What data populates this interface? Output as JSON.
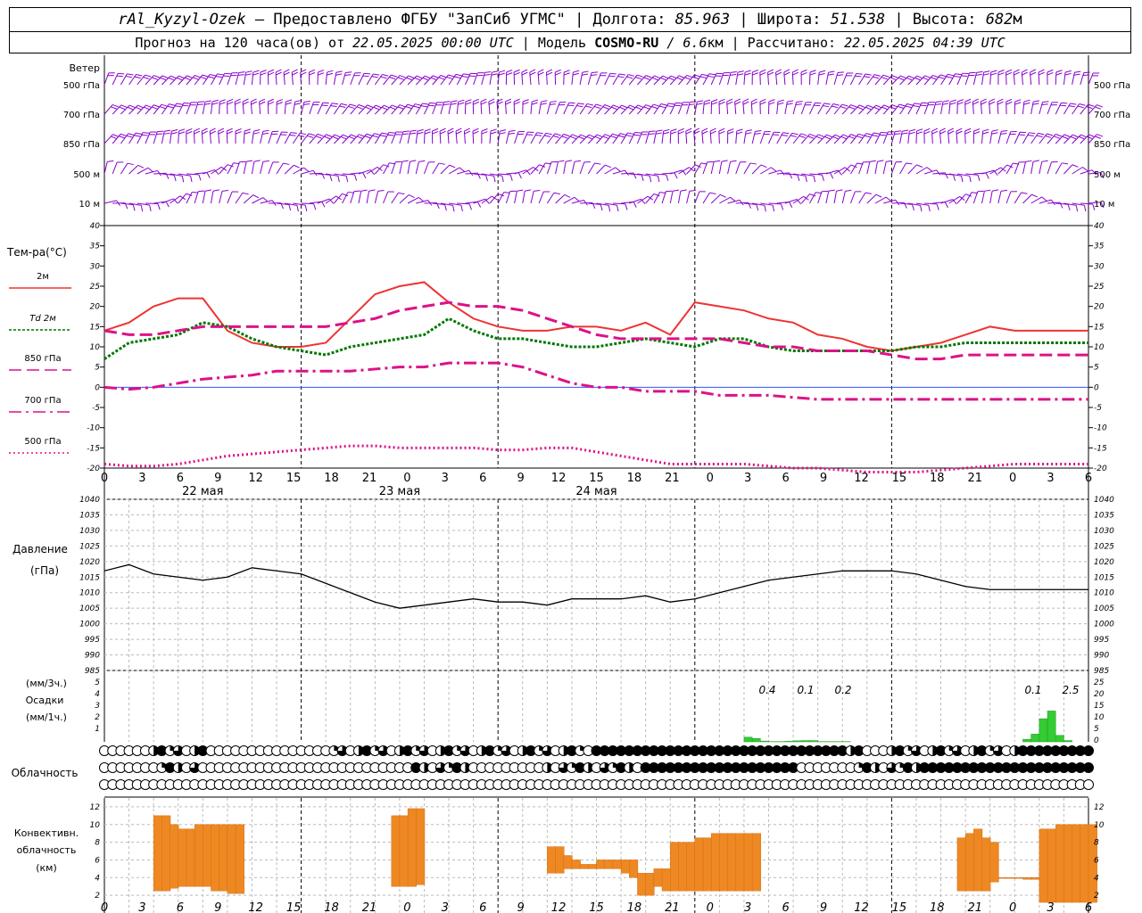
{
  "header": {
    "station": "rAl_Kyzyl-Ozek",
    "provider": " – Предоставлено ФГБУ \"ЗапСиб УГМС\" | Долгота: ",
    "lon": "85.963",
    "lat_label": " | Широта: ",
    "lat": "51.538",
    "alt_label": " | Высота: ",
    "alt": "682",
    "alt_unit": "м",
    "fc_label": "Прогноз на 120 часа(ов) от ",
    "fc_date": "22.05.2025 00:00 UTC",
    "model_label": "  | Модель ",
    "model": "COSMO-RU",
    "model_res": " / 6.6",
    "model_res_unit": "км",
    "calc_label": " | Рассчитано: ",
    "calc_date": "22.05.2025 04:39 UTC"
  },
  "wind_panel": {
    "title": "Ветер",
    "levels": [
      "500 гПа",
      "700 гПа",
      "850 гПа",
      "500 м",
      "10  м"
    ],
    "levels_right": [
      "500 гПа",
      "700 гПа",
      "850 гПа",
      "500 м",
      "10  м"
    ],
    "barb_color": "#8800cc"
  },
  "temp_panel": {
    "ylabel": "Тем-ра(°C)",
    "legend": [
      {
        "label": "2м",
        "color": "#ee3333",
        "style": "solid"
      },
      {
        "label": "Td  2м",
        "color": "#007700",
        "style": "dot"
      },
      {
        "label": "850 гПа",
        "color": "#dd1188",
        "style": "dash"
      },
      {
        "label": "700 гПа",
        "color": "#dd1188",
        "style": "dashdot"
      },
      {
        "label": "500 гПа",
        "color": "#dd1188",
        "style": "dotted"
      }
    ],
    "yticks": [
      "40",
      "35",
      "30",
      "25",
      "20",
      "15",
      "10",
      "5",
      "0",
      "-5",
      "-10",
      "-15",
      "-20"
    ]
  },
  "time_axis": {
    "hour_labels": [
      "0",
      "3",
      "6",
      "9",
      "12",
      "15",
      "18",
      "21",
      "0",
      "3",
      "6",
      "9",
      "12",
      "15",
      "18",
      "21",
      "0",
      "3",
      "6",
      "9",
      "12",
      "15",
      "18",
      "21",
      "0",
      "3",
      "6"
    ],
    "day_labels": [
      "22 мая",
      "23 мая",
      "24 мая"
    ]
  },
  "pressure_panel": {
    "ylabel1": "Давление",
    "ylabel2": "(гПа)",
    "yticks": [
      "1040",
      "1035",
      "1030",
      "1025",
      "1020",
      "1015",
      "1010",
      "1005",
      "1000",
      "995",
      "990",
      "985"
    ]
  },
  "precip_panel": {
    "label1": "(мм/3ч.)",
    "label2": "Осадки",
    "label3": "(мм/1ч.)",
    "yticks_3h": [
      "5",
      "4",
      "3",
      "2",
      "1"
    ],
    "yticks_1h": [
      "25",
      "20",
      "15",
      "10",
      "5",
      "0"
    ],
    "annotations": [
      "0.4",
      "0.1",
      "0.2",
      "0.1",
      "2.5"
    ],
    "bar_color": "#33cc33"
  },
  "cloud_panel": {
    "label": "Облачность",
    "rows_note": "cloud cover symbols (low/mid/high)"
  },
  "convective_panel": {
    "label1": "Конвективн.",
    "label2": "облачность",
    "label3": "(км)",
    "yticks": [
      "12",
      "10",
      "8",
      "6",
      "4",
      "2"
    ],
    "bar_color": "#ee8822"
  },
  "chart_data": [
    {
      "type": "line",
      "title": "Тем-ра(°C)",
      "xlabel": "",
      "ylabel": "Тем-ра(°C)",
      "ylim": [
        -20,
        40
      ],
      "x_hours": [
        0,
        3,
        6,
        9,
        12,
        15,
        18,
        21,
        24,
        27,
        30,
        33,
        36,
        39,
        42,
        45,
        48,
        51,
        54,
        57,
        60,
        63,
        66,
        69,
        72,
        75,
        78,
        81,
        84,
        87,
        90,
        93,
        96,
        99,
        102,
        105,
        108,
        111,
        114,
        117,
        120
      ],
      "series": [
        {
          "name": "2м",
          "values": [
            14,
            16,
            20,
            22,
            22,
            14,
            11,
            10,
            10,
            11,
            17,
            23,
            25,
            26,
            21,
            17,
            15,
            14,
            14,
            15,
            15,
            14,
            16,
            13,
            21,
            20,
            19,
            17,
            16,
            13,
            12,
            10,
            9,
            10,
            11,
            13,
            15,
            14,
            14,
            14,
            14
          ]
        },
        {
          "name": "Td  2м",
          "values": [
            7,
            11,
            12,
            13,
            16,
            15,
            12,
            10,
            9,
            8,
            10,
            11,
            12,
            13,
            17,
            14,
            12,
            12,
            11,
            10,
            10,
            11,
            12,
            11,
            10,
            12,
            12,
            10,
            9,
            9,
            9,
            9,
            9,
            10,
            10,
            11,
            11,
            11,
            11,
            11,
            11
          ]
        },
        {
          "name": "850 гПа",
          "values": [
            14,
            13,
            13,
            14,
            15,
            15,
            15,
            15,
            15,
            15,
            16,
            17,
            19,
            20,
            21,
            20,
            20,
            19,
            17,
            15,
            13,
            12,
            12,
            12,
            12,
            12,
            11,
            10,
            10,
            9,
            9,
            9,
            8,
            7,
            7,
            8,
            8,
            8,
            8,
            8,
            8
          ]
        },
        {
          "name": "700 гПа",
          "values": [
            0,
            -0.5,
            0,
            1,
            2,
            2.5,
            3,
            4,
            4,
            4,
            4,
            4.5,
            5,
            5,
            6,
            6,
            6,
            5,
            3,
            1,
            0,
            0,
            -1,
            -1,
            -1,
            -2,
            -2,
            -2,
            -2.5,
            -3,
            -3,
            -3,
            -3,
            -3,
            -3,
            -3,
            -3,
            -3,
            -3,
            -3,
            -3
          ]
        },
        {
          "name": "500 гПа",
          "values": [
            -19,
            -19.5,
            -19.5,
            -19,
            -18,
            -17,
            -16.5,
            -16,
            -15.5,
            -15,
            -14.5,
            -14.5,
            -15,
            -15,
            -15,
            -15,
            -15.5,
            -15.5,
            -15,
            -15,
            -16,
            -17,
            -18,
            -19,
            -19,
            -19,
            -19,
            -19.5,
            -20,
            -20,
            -20.5,
            -21,
            -21,
            -21,
            -20.5,
            -20,
            -19.5,
            -19,
            -19,
            -19,
            -19
          ]
        }
      ]
    },
    {
      "type": "line",
      "title": "Давление",
      "xlabel": "",
      "ylabel": "(гПа)",
      "ylim": [
        985,
        1040
      ],
      "x_hours": [
        0,
        3,
        6,
        9,
        12,
        15,
        18,
        21,
        24,
        27,
        30,
        33,
        36,
        39,
        42,
        45,
        48,
        51,
        54,
        57,
        60,
        63,
        66,
        69,
        72,
        75,
        78,
        81,
        84,
        87,
        90,
        93,
        96,
        99,
        102,
        105,
        108,
        111,
        114,
        117,
        120
      ],
      "series": [
        {
          "name": "Давление",
          "values": [
            1017,
            1019,
            1016,
            1015,
            1014,
            1015,
            1018,
            1017,
            1016,
            1013,
            1010,
            1007,
            1005,
            1006,
            1007,
            1008,
            1007,
            1007,
            1006,
            1008,
            1008,
            1008,
            1009,
            1007,
            1008,
            1010,
            1012,
            1014,
            1015,
            1016,
            1017,
            1017,
            1017,
            1016,
            1014,
            1012,
            1011,
            1011,
            1011,
            1011,
            1011
          ]
        }
      ]
    },
    {
      "type": "bar",
      "title": "Осадки",
      "xlabel": "",
      "ylabel": "(мм/1ч.)",
      "ylim": [
        0,
        25
      ],
      "x_hours": [
        78,
        79,
        80,
        81,
        82,
        83,
        84,
        85,
        86,
        87,
        88,
        89,
        90,
        112,
        113,
        114,
        115,
        116,
        117
      ],
      "values": [
        1.8,
        1.3,
        0.3,
        0.1,
        0.1,
        0.2,
        0.4,
        0.5,
        0.5,
        0.1,
        0.1,
        0.1,
        0.1,
        1.0,
        3.0,
        9.0,
        12.0,
        2.5,
        0.5
      ]
    },
    {
      "type": "bar",
      "title": "Конвективн. облачность",
      "xlabel": "",
      "ylabel": "(км)",
      "ylim": [
        0,
        13
      ],
      "x_hours": [
        6,
        7,
        8,
        9,
        10,
        11,
        12,
        13,
        14,
        15,
        16,
        35,
        36,
        37,
        38,
        54,
        55,
        56,
        57,
        58,
        59,
        60,
        61,
        62,
        63,
        64,
        65,
        66,
        67,
        68,
        69,
        70,
        71,
        72,
        73,
        74,
        75,
        76,
        77,
        78,
        79,
        104,
        105,
        106,
        107,
        108,
        109,
        110,
        111,
        112,
        113,
        114,
        115,
        116,
        117,
        118,
        119,
        120
      ],
      "bases": [
        2.5,
        2.5,
        2.8,
        3.0,
        3.0,
        3.0,
        3.0,
        2.5,
        2.5,
        2.2,
        2.2,
        3.0,
        3.0,
        3.0,
        3.2,
        4.5,
        4.5,
        5.0,
        5.0,
        5.0,
        5.0,
        5.0,
        5.0,
        5.0,
        4.5,
        4.0,
        2.0,
        2.0,
        3.0,
        2.5,
        2.5,
        2.5,
        2.5,
        2.5,
        2.5,
        2.5,
        2.5,
        2.5,
        2.5,
        2.5,
        2.5,
        2.5,
        2.5,
        2.5,
        2.5,
        3.5,
        4.0,
        4.0,
        4.0,
        3.8,
        3.8,
        1.2,
        1.2,
        1.2,
        1.2,
        1.2,
        1.2,
        1.2
      ],
      "tops": [
        11,
        11,
        10,
        9.5,
        9.5,
        10,
        10,
        10,
        10,
        10,
        10,
        11,
        11,
        11.8,
        11.8,
        7.5,
        7.5,
        6.5,
        6.0,
        5.5,
        5.5,
        6.0,
        6.0,
        6.0,
        6.0,
        6.0,
        4.5,
        4.5,
        5.0,
        5.0,
        8.0,
        8.0,
        8.0,
        8.5,
        8.5,
        9.0,
        9.0,
        9.0,
        9.0,
        9.0,
        9.0,
        8.5,
        9.0,
        9.5,
        8.5,
        8.0,
        4.0,
        4.0,
        4.0,
        4.0,
        4.0,
        9.5,
        9.5,
        10,
        10,
        10,
        10,
        10
      ]
    }
  ]
}
